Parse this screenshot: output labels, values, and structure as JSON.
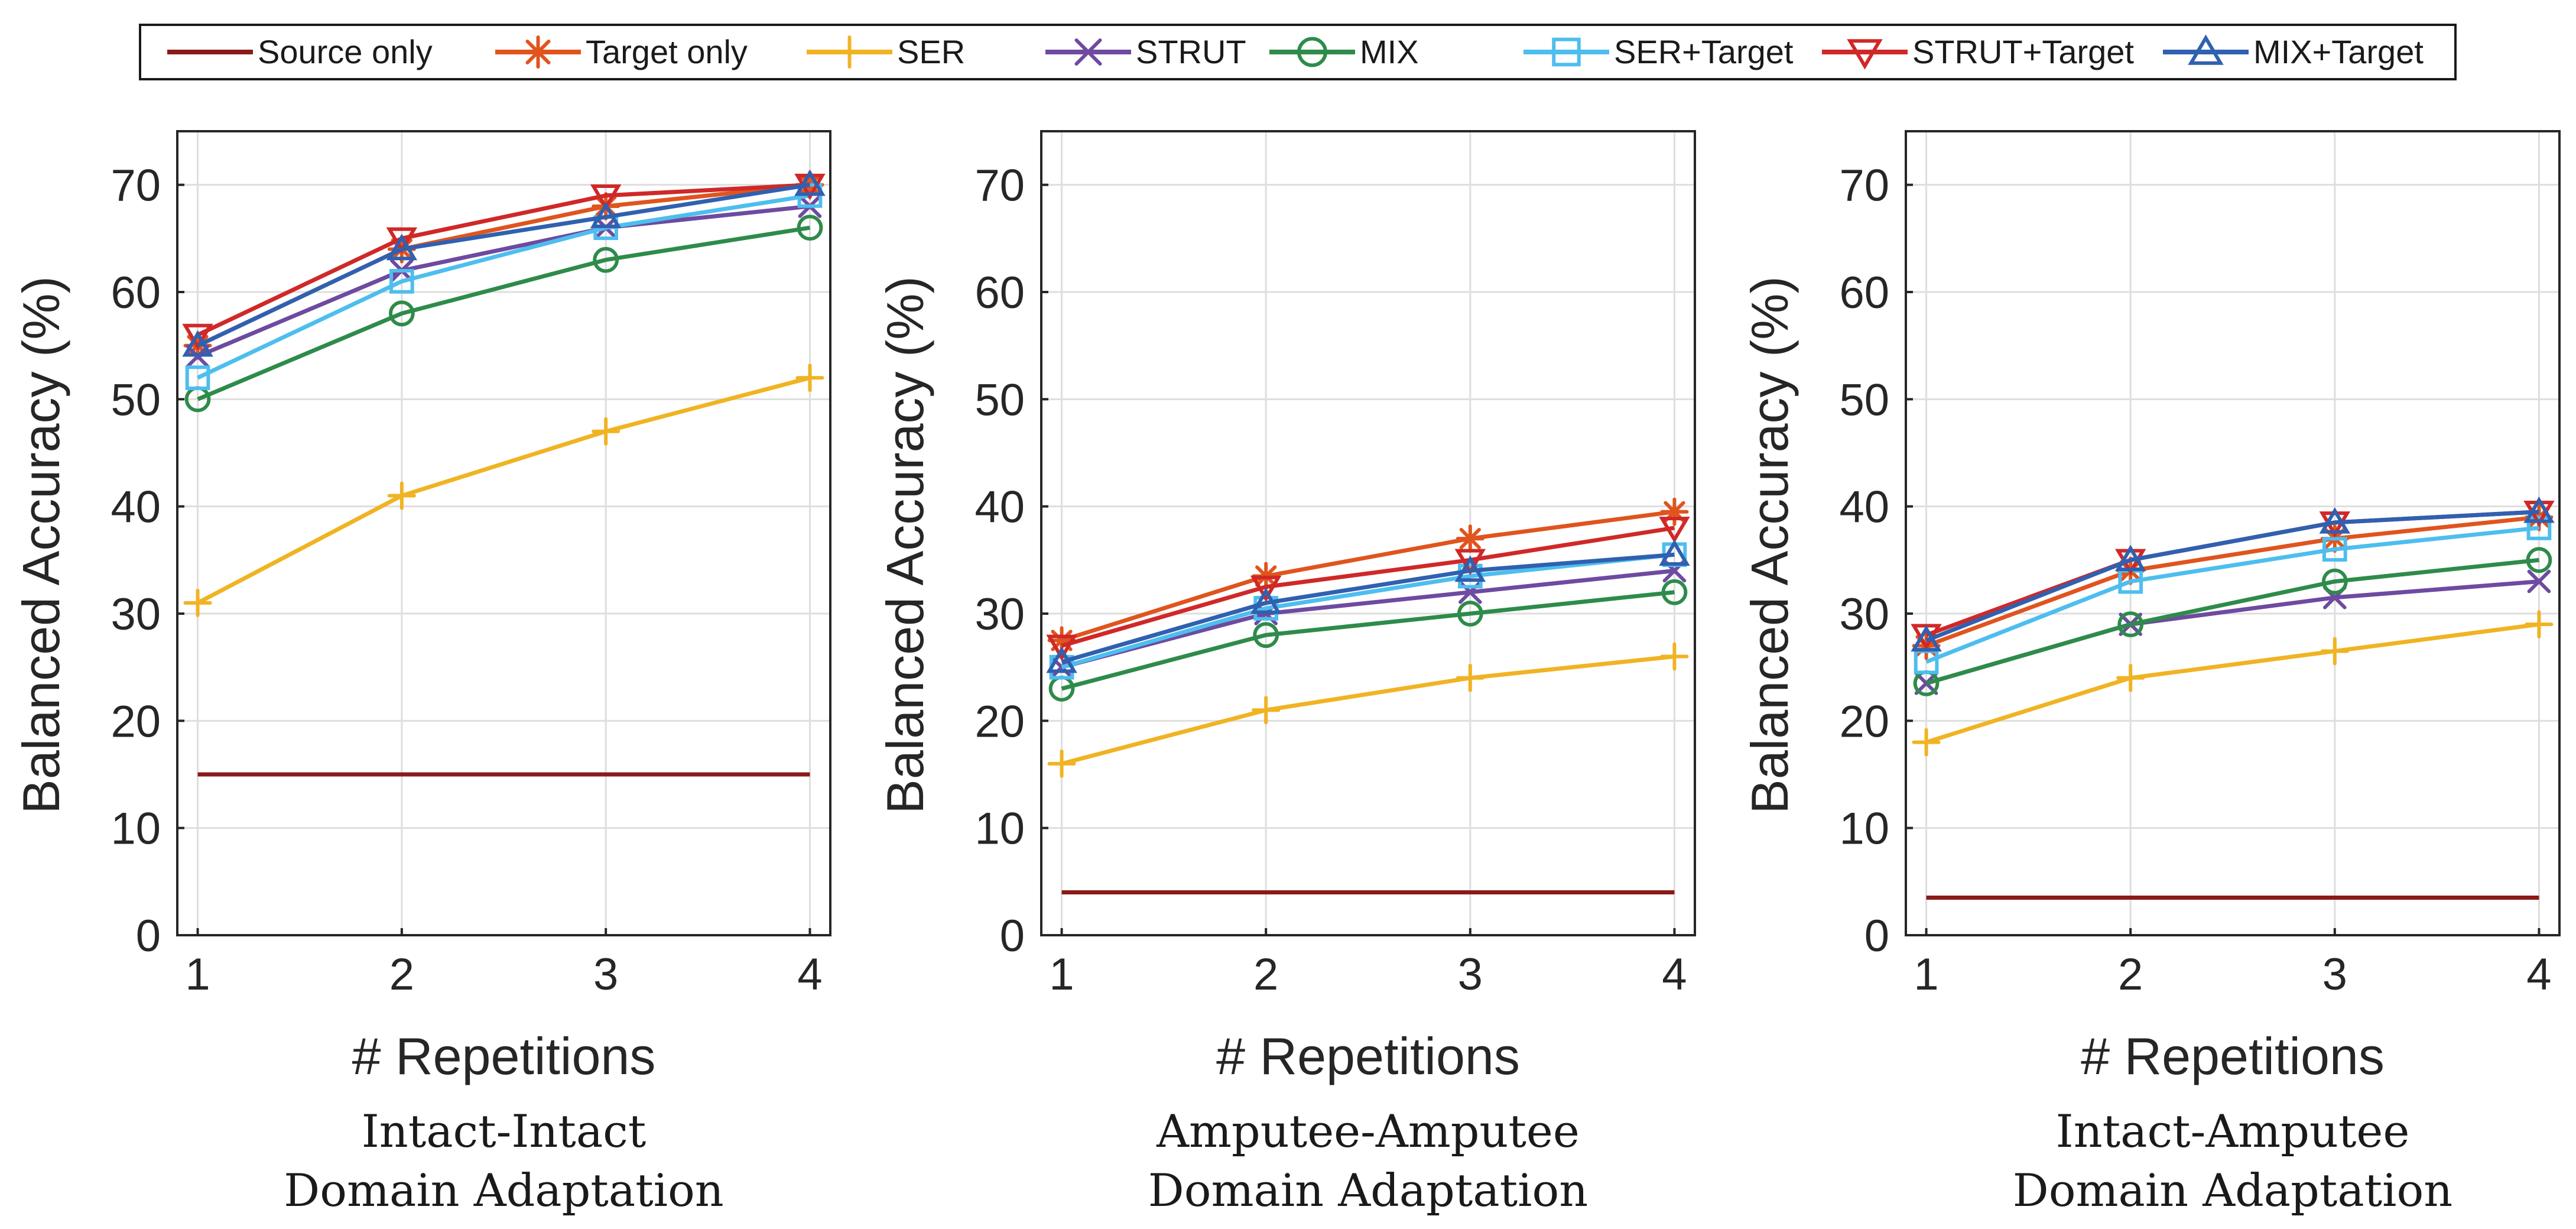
{
  "legend": {
    "items": [
      {
        "name": "Source only",
        "color": "#8B1A1A",
        "marker": "none"
      },
      {
        "name": "Target only",
        "color": "#E0541E",
        "marker": "asterisk"
      },
      {
        "name": "SER",
        "color": "#F0B323",
        "marker": "plus"
      },
      {
        "name": "STRUT",
        "color": "#6E4AA0",
        "marker": "x"
      },
      {
        "name": "MIX",
        "color": "#2E8B4A",
        "marker": "circle"
      },
      {
        "name": "SER+Target",
        "color": "#4DBEEE",
        "marker": "square"
      },
      {
        "name": "STRUT+Target",
        "color": "#D02828",
        "marker": "triangle-down"
      },
      {
        "name": "MIX+Target",
        "color": "#3060B0",
        "marker": "triangle-up"
      }
    ]
  },
  "chart_data": [
    {
      "type": "line",
      "title": "Intact-Intact Domain Adaptation",
      "caption_lines": [
        "Intact-Intact",
        "Domain Adaptation"
      ],
      "xlabel": "# Repetitions",
      "ylabel": "Balanced Accuracy (%)",
      "x": [
        1,
        2,
        3,
        4
      ],
      "xticks": [
        "1",
        "2",
        "3",
        "4"
      ],
      "yticks": [
        "0",
        "10",
        "20",
        "30",
        "40",
        "50",
        "60",
        "70"
      ],
      "xlim": [
        0.9,
        4.1
      ],
      "ylim": [
        0,
        75
      ],
      "grid": true,
      "series": [
        {
          "name": "Source only",
          "values": [
            15,
            15,
            15,
            15
          ]
        },
        {
          "name": "Target only",
          "values": [
            55,
            64,
            68,
            70
          ]
        },
        {
          "name": "SER",
          "values": [
            31,
            41,
            47,
            52
          ]
        },
        {
          "name": "STRUT",
          "values": [
            54,
            62,
            66,
            68
          ]
        },
        {
          "name": "MIX",
          "values": [
            50,
            58,
            63,
            66
          ]
        },
        {
          "name": "SER+Target",
          "values": [
            52,
            61,
            66,
            69
          ]
        },
        {
          "name": "STRUT+Target",
          "values": [
            56,
            65,
            69,
            70
          ]
        },
        {
          "name": "MIX+Target",
          "values": [
            55,
            64,
            67,
            70
          ]
        }
      ]
    },
    {
      "type": "line",
      "title": "Amputee-Amputee Domain Adaptation",
      "caption_lines": [
        "Amputee-Amputee",
        "Domain Adaptation"
      ],
      "xlabel": "# Repetitions",
      "ylabel": "Balanced Accuracy (%)",
      "x": [
        1,
        2,
        3,
        4
      ],
      "xticks": [
        "1",
        "2",
        "3",
        "4"
      ],
      "yticks": [
        "0",
        "10",
        "20",
        "30",
        "40",
        "50",
        "60",
        "70"
      ],
      "xlim": [
        0.9,
        4.1
      ],
      "ylim": [
        0,
        75
      ],
      "grid": true,
      "series": [
        {
          "name": "Source only",
          "values": [
            4,
            4,
            4,
            4
          ]
        },
        {
          "name": "Target only",
          "values": [
            27.5,
            33.5,
            37,
            39.5
          ]
        },
        {
          "name": "SER",
          "values": [
            16,
            21,
            24,
            26
          ]
        },
        {
          "name": "STRUT",
          "values": [
            25,
            30,
            32,
            34
          ]
        },
        {
          "name": "MIX",
          "values": [
            23,
            28,
            30,
            32
          ]
        },
        {
          "name": "SER+Target",
          "values": [
            25,
            30.5,
            33.5,
            35.5
          ]
        },
        {
          "name": "STRUT+Target",
          "values": [
            27,
            32.5,
            35,
            38
          ]
        },
        {
          "name": "MIX+Target",
          "values": [
            25.5,
            31,
            34,
            35.5
          ]
        }
      ]
    },
    {
      "type": "line",
      "title": "Intact-Amputee Domain Adaptation",
      "caption_lines": [
        "Intact-Amputee",
        "Domain Adaptation"
      ],
      "xlabel": "# Repetitions",
      "ylabel": "Balanced Accuracy (%)",
      "x": [
        1,
        2,
        3,
        4
      ],
      "xticks": [
        "1",
        "2",
        "3",
        "4"
      ],
      "yticks": [
        "0",
        "10",
        "20",
        "30",
        "40",
        "50",
        "60",
        "70"
      ],
      "xlim": [
        0.9,
        4.1
      ],
      "ylim": [
        0,
        75
      ],
      "grid": true,
      "series": [
        {
          "name": "Source only",
          "values": [
            3.5,
            3.5,
            3.5,
            3.5
          ]
        },
        {
          "name": "Target only",
          "values": [
            27,
            34,
            37,
            39
          ]
        },
        {
          "name": "SER",
          "values": [
            18,
            24,
            26.5,
            29
          ]
        },
        {
          "name": "STRUT",
          "values": [
            23.5,
            29,
            31.5,
            33
          ]
        },
        {
          "name": "MIX",
          "values": [
            23.5,
            29,
            33,
            35
          ]
        },
        {
          "name": "SER+Target",
          "values": [
            25.5,
            33,
            36,
            38
          ]
        },
        {
          "name": "STRUT+Target",
          "values": [
            28,
            35,
            38.5,
            39.5
          ]
        },
        {
          "name": "MIX+Target",
          "values": [
            27.5,
            35,
            38.5,
            39.5
          ]
        }
      ]
    }
  ]
}
